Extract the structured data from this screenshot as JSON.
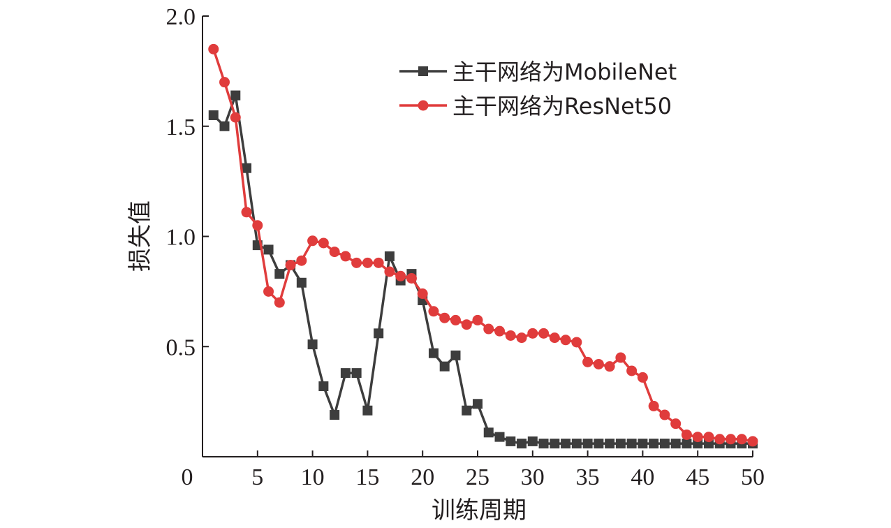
{
  "chart_data": {
    "type": "line",
    "xlabel": "训练周期",
    "ylabel": "损失值",
    "xlim": [
      0,
      50
    ],
    "ylim": [
      0,
      2.0
    ],
    "x_ticks": [
      "0",
      "5",
      "10",
      "15",
      "20",
      "25",
      "30",
      "35",
      "40",
      "45",
      "50"
    ],
    "y_ticks": [
      "0.5",
      "1.0",
      "1.5",
      "2.0"
    ],
    "grid": false,
    "legend_position": "top-right",
    "series": [
      {
        "name": "主干网络为MobileNet",
        "color": "#3d3d3d",
        "marker": "square",
        "x": [
          1,
          2,
          3,
          4,
          5,
          6,
          7,
          8,
          9,
          10,
          11,
          12,
          13,
          14,
          15,
          16,
          17,
          18,
          19,
          20,
          21,
          22,
          23,
          24,
          25,
          26,
          27,
          28,
          29,
          30,
          31,
          32,
          33,
          34,
          35,
          36,
          37,
          38,
          39,
          40,
          41,
          42,
          43,
          44,
          45,
          46,
          47,
          48,
          49,
          50
        ],
        "values": [
          1.55,
          1.5,
          1.64,
          1.31,
          0.96,
          0.94,
          0.83,
          0.87,
          0.79,
          0.51,
          0.32,
          0.19,
          0.38,
          0.38,
          0.21,
          0.56,
          0.91,
          0.8,
          0.83,
          0.71,
          0.47,
          0.41,
          0.46,
          0.21,
          0.24,
          0.11,
          0.09,
          0.07,
          0.06,
          0.07,
          0.06,
          0.06,
          0.06,
          0.06,
          0.06,
          0.06,
          0.06,
          0.06,
          0.06,
          0.06,
          0.06,
          0.06,
          0.06,
          0.06,
          0.06,
          0.06,
          0.06,
          0.06,
          0.06,
          0.06
        ]
      },
      {
        "name": "主干网络为ResNet50",
        "color": "#e03c3c",
        "marker": "circle",
        "x": [
          1,
          2,
          3,
          4,
          5,
          6,
          7,
          8,
          9,
          10,
          11,
          12,
          13,
          14,
          15,
          16,
          17,
          18,
          19,
          20,
          21,
          22,
          23,
          24,
          25,
          26,
          27,
          28,
          29,
          30,
          31,
          32,
          33,
          34,
          35,
          36,
          37,
          38,
          39,
          40,
          41,
          42,
          43,
          44,
          45,
          46,
          47,
          48,
          49,
          50
        ],
        "values": [
          1.85,
          1.7,
          1.54,
          1.11,
          1.05,
          0.75,
          0.7,
          0.87,
          0.89,
          0.98,
          0.97,
          0.93,
          0.91,
          0.88,
          0.88,
          0.88,
          0.84,
          0.82,
          0.81,
          0.74,
          0.66,
          0.63,
          0.62,
          0.6,
          0.62,
          0.58,
          0.57,
          0.55,
          0.54,
          0.56,
          0.56,
          0.54,
          0.53,
          0.52,
          0.43,
          0.42,
          0.41,
          0.45,
          0.39,
          0.36,
          0.23,
          0.19,
          0.15,
          0.1,
          0.09,
          0.09,
          0.08,
          0.08,
          0.08,
          0.07
        ]
      }
    ]
  }
}
